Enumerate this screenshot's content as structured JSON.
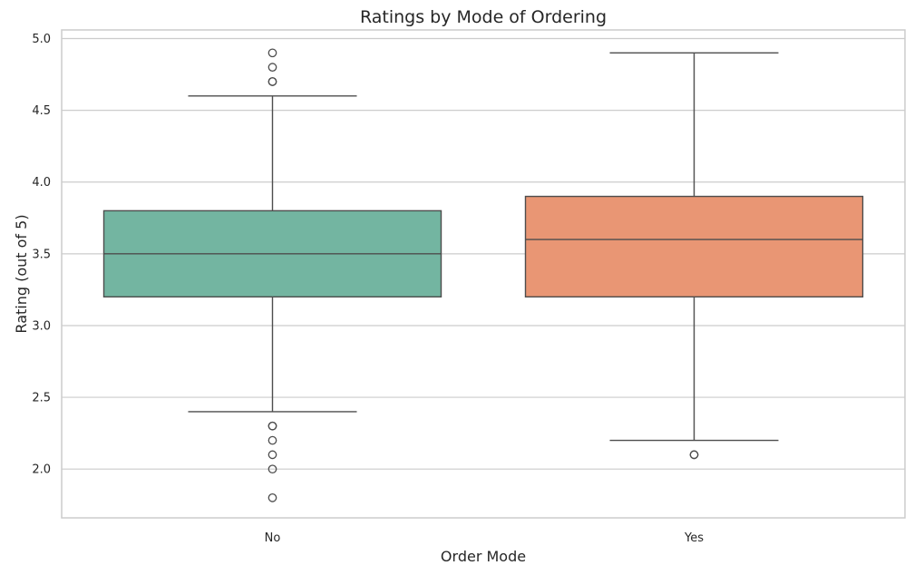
{
  "chart_data": {
    "type": "box",
    "title": "Ratings by Mode of Ordering",
    "xlabel": "Order Mode",
    "ylabel": "Rating (out of 5)",
    "ylim": [
      1.66,
      5.06
    ],
    "yticks": [
      2.0,
      2.5,
      3.0,
      3.5,
      4.0,
      4.5,
      5.0
    ],
    "ytick_labels": [
      "2.0",
      "2.5",
      "3.0",
      "3.5",
      "4.0",
      "4.5",
      "5.0"
    ],
    "grid": "horizontal",
    "categories": [
      "No",
      "Yes"
    ],
    "boxes": [
      {
        "category": "No",
        "whisker_low": 2.4,
        "q1": 3.2,
        "median": 3.5,
        "q3": 3.8,
        "whisker_high": 4.6,
        "outliers": [
          4.9,
          4.8,
          4.7,
          4.7,
          2.3,
          2.3,
          2.2,
          2.1,
          2.0,
          1.8
        ],
        "color": "#73b5a1"
      },
      {
        "category": "Yes",
        "whisker_low": 2.2,
        "q1": 3.2,
        "median": 3.6,
        "q3": 3.9,
        "whisker_high": 4.9,
        "outliers": [
          2.1,
          2.1
        ],
        "color": "#e99674"
      }
    ]
  }
}
